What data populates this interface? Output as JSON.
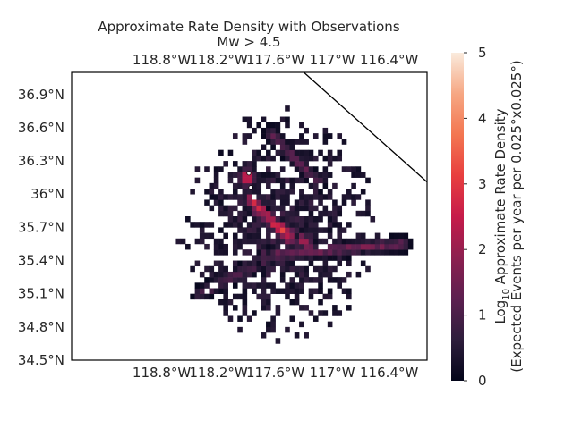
{
  "chart_data": {
    "type": "heatmap",
    "title": "Approximate Rate Density with Observations",
    "subtitle": "Mw > 4.5",
    "x_ticks": [
      {
        "value": -118.8,
        "label": "118.8°W"
      },
      {
        "value": -118.2,
        "label": "118.2°W"
      },
      {
        "value": -117.6,
        "label": "117.6°W"
      },
      {
        "value": -117.0,
        "label": "117°W"
      },
      {
        "value": -116.4,
        "label": "116.4°W"
      }
    ],
    "y_ticks": [
      {
        "value": 34.5,
        "label": "34.5°N"
      },
      {
        "value": 34.8,
        "label": "34.8°N"
      },
      {
        "value": 35.1,
        "label": "35.1°N"
      },
      {
        "value": 35.4,
        "label": "35.4°N"
      },
      {
        "value": 35.7,
        "label": "35.7°N"
      },
      {
        "value": 36.0,
        "label": "36°N"
      },
      {
        "value": 36.3,
        "label": "36.3°N"
      },
      {
        "value": 36.6,
        "label": "36.6°N"
      },
      {
        "value": 36.9,
        "label": "36.9°N"
      }
    ],
    "xlim": [
      -119.75,
      -116.0
    ],
    "ylim": [
      34.5,
      37.1
    ],
    "cell_size_deg": 0.025,
    "colorbar": {
      "label_main": "Approximate Rate Density",
      "label_prefix": "Log",
      "label_sub": "10",
      "label_line2": "(Expected Events per year per 0.025°x0.025°)",
      "range": [
        0,
        5
      ],
      "ticks": [
        "0",
        "1",
        "2",
        "3",
        "4",
        "5"
      ]
    },
    "density_features": {
      "background_scatter": {
        "center_lon": -117.55,
        "center_lat": 35.7,
        "radius_deg": 1.0,
        "typical_value": 0.6
      },
      "main_trend": {
        "from": [
          -117.85,
          35.95
        ],
        "to": [
          -117.45,
          35.6
        ],
        "peak_value": 3.4
      },
      "second_trend": {
        "from": [
          -117.8,
          35.85
        ],
        "to": [
          -117.25,
          35.55
        ],
        "peak_value": 2.6
      },
      "eastern_fault": {
        "from": [
          -117.7,
          35.45
        ],
        "to": [
          -116.25,
          35.55
        ],
        "peak_value": 1.8
      },
      "northern_fault": {
        "from": [
          -117.65,
          36.55
        ],
        "to": [
          -117.15,
          36.1
        ],
        "peak_value": 1.5
      },
      "hotspot": {
        "lon": -117.9,
        "lat": 36.15,
        "peak_value": 3.0
      },
      "southwest_branch": {
        "from": [
          -117.6,
          35.45
        ],
        "to": [
          -118.4,
          35.1
        ],
        "peak_value": 1.3
      }
    },
    "observations": [
      {
        "lon": -117.88,
        "lat": 36.19
      },
      {
        "lon": -117.86,
        "lat": 36.06
      }
    ],
    "boundary_line": {
      "from": [
        -117.3,
        37.1
      ],
      "to": [
        -116.0,
        36.11
      ]
    }
  }
}
